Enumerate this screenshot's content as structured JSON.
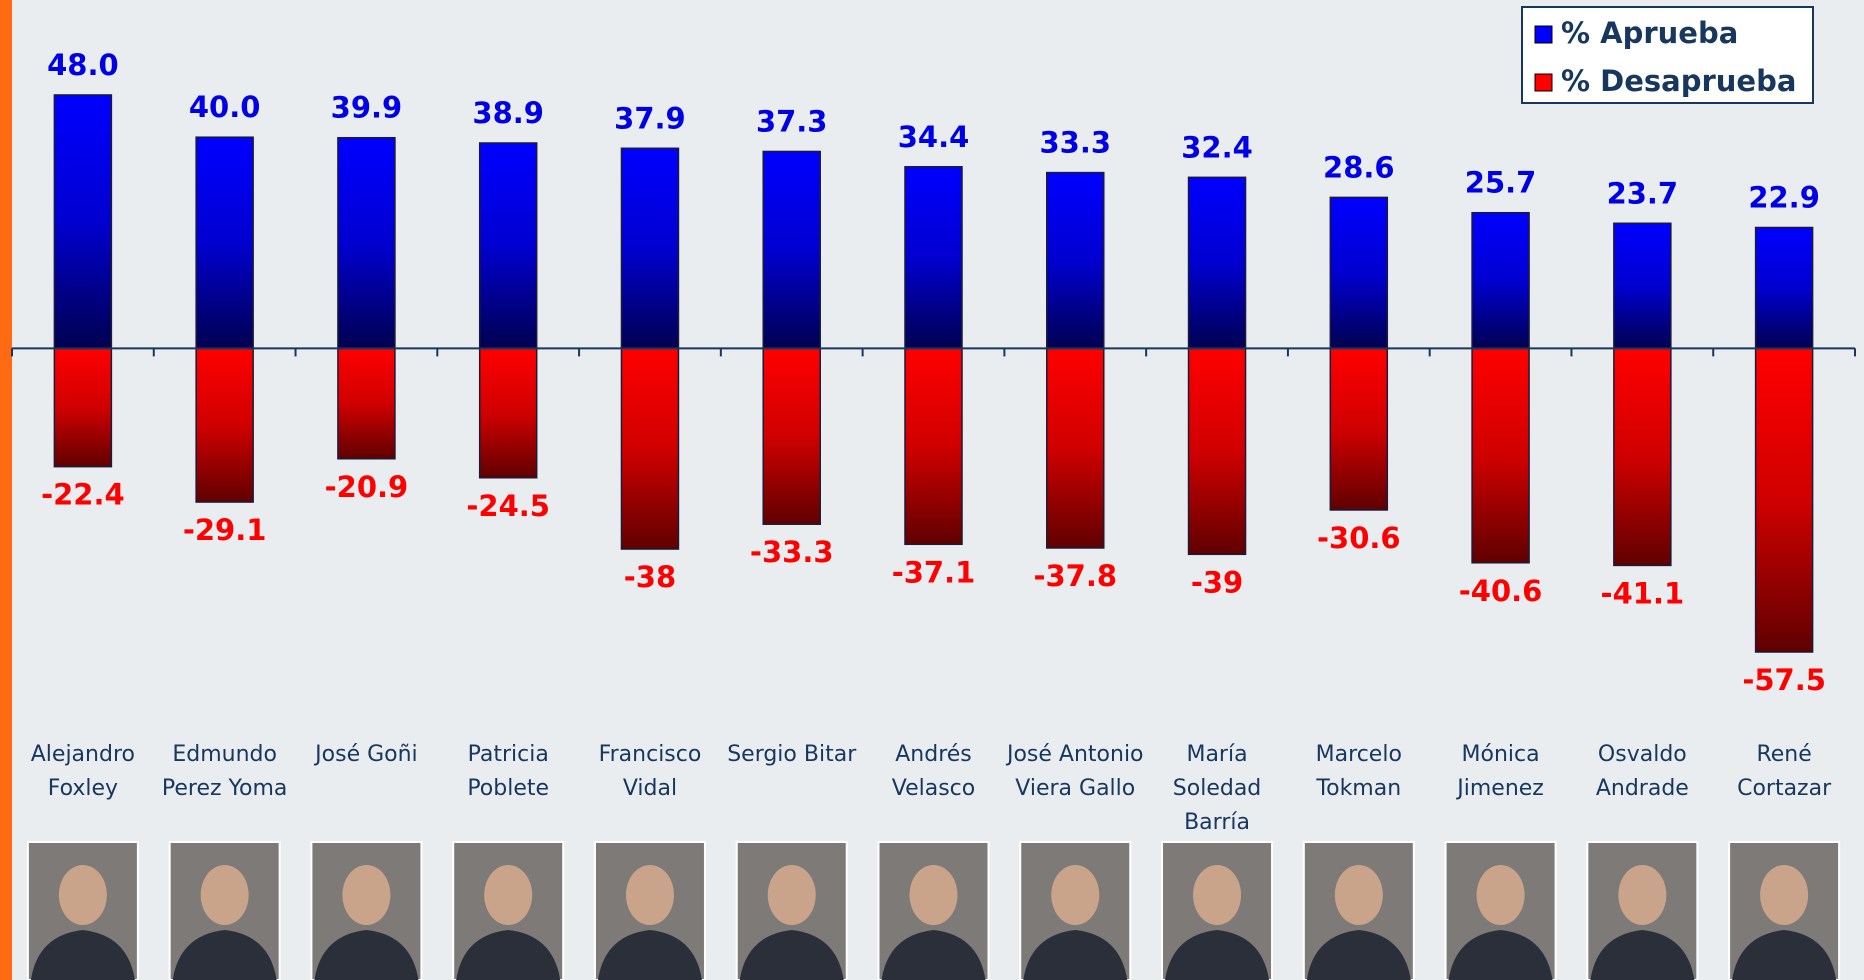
{
  "chart_data": {
    "type": "diverging-bar",
    "categories": [
      "Alejandro Foxley",
      "Edmundo Perez Yoma",
      "José Goñi",
      "Patricia Poblete",
      "Francisco Vidal",
      "Sergio Bitar",
      "Andrés Velasco",
      "José Antonio Viera Gallo",
      "María Soledad Barría",
      "Marcelo Tokman",
      "Mónica Jimenez",
      "Osvaldo Andrade",
      "René Cortazar"
    ],
    "series": [
      {
        "name": "% Aprueba",
        "color": "#0000ff",
        "values": [
          48.0,
          40.0,
          39.9,
          38.9,
          37.9,
          37.3,
          34.4,
          33.3,
          32.4,
          28.6,
          25.7,
          23.7,
          22.9
        ],
        "value_labels": [
          "48.0",
          "40.0",
          "39.9",
          "38.9",
          "37.9",
          "37.3",
          "34.4",
          "33.3",
          "32.4",
          "28.6",
          "25.7",
          "23.7",
          "22.9"
        ]
      },
      {
        "name": "% Desaprueba",
        "color": "#ff0000",
        "values": [
          -22.4,
          -29.1,
          -20.9,
          -24.5,
          -38,
          -33.3,
          -37.1,
          -37.8,
          -39,
          -30.6,
          -40.6,
          -41.1,
          -57.5
        ]
      }
    ],
    "ylim": [
      -70,
      55
    ],
    "legend": "top-right"
  }
}
